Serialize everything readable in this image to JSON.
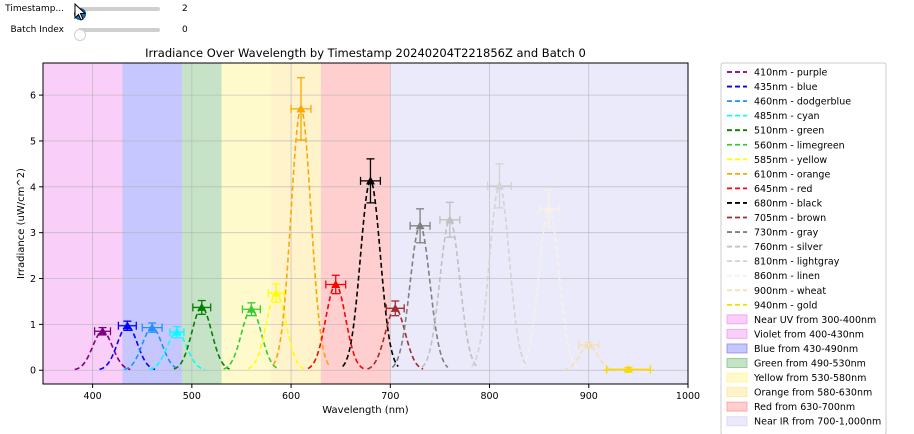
{
  "controls": {
    "timestamp": {
      "label": "Timestamp...",
      "value": "2",
      "fraction": 0.0
    },
    "batch": {
      "label": "Batch Index",
      "value": "0",
      "fraction": 0.0
    }
  },
  "chart_data": {
    "type": "line",
    "title": "Irradiance Over Wavelength by Timestamp  20240204T221856Z and Batch 0",
    "xlabel": "Wavelength (nm)",
    "ylabel": "Irradiance (uW/cm^2)",
    "xlim": [
      350,
      1000
    ],
    "ylim": [
      -0.3,
      6.7
    ],
    "xticks": [
      "400",
      "500",
      "600",
      "700",
      "800",
      "900",
      "1000"
    ],
    "yticks": [
      "0",
      "1",
      "2",
      "3",
      "4",
      "5",
      "6"
    ],
    "grid": true,
    "legend_position": "outside-right",
    "bands": [
      {
        "label": "Near UV from 300-400nm",
        "range": [
          300,
          400
        ],
        "color": "#ee82ee"
      },
      {
        "label": "Violet from 400-430nm",
        "range": [
          400,
          430
        ],
        "color": "#ee82ee"
      },
      {
        "label": "Blue from 430-490nm",
        "range": [
          430,
          490
        ],
        "color": "#6b6bff"
      },
      {
        "label": "Green from 490-530nm",
        "range": [
          490,
          530
        ],
        "color": "#6bb56b"
      },
      {
        "label": "Yellow from 530-580nm",
        "range": [
          530,
          580
        ],
        "color": "#fff27a"
      },
      {
        "label": "Orange from 580-630nm",
        "range": [
          580,
          630
        ],
        "color": "#ffe07a"
      },
      {
        "label": "Red from 630-700nm",
        "range": [
          630,
          700
        ],
        "color": "#ff8080"
      },
      {
        "label": "Near IR from 700-1,000nm",
        "range": [
          700,
          1000
        ],
        "color": "#c9c9f5"
      }
    ],
    "series": [
      {
        "name": "410nm - purple",
        "center": 410,
        "peak": 0.85,
        "color": "#800080",
        "yerr": 0.08,
        "xerr": 8
      },
      {
        "name": "435nm - blue",
        "center": 435,
        "peak": 0.97,
        "color": "#0000ff",
        "yerr": 0.1,
        "xerr": 9
      },
      {
        "name": "460nm - dodgerblue",
        "center": 460,
        "peak": 0.93,
        "color": "#1e90ff",
        "yerr": 0.1,
        "xerr": 10
      },
      {
        "name": "485nm - cyan",
        "center": 485,
        "peak": 0.83,
        "color": "#00ffff",
        "yerr": 0.12,
        "xerr": 7
      },
      {
        "name": "510nm - green",
        "center": 510,
        "peak": 1.37,
        "color": "#008000",
        "yerr": 0.15,
        "xerr": 9
      },
      {
        "name": "560nm - limegreen",
        "center": 560,
        "peak": 1.33,
        "color": "#32cd32",
        "yerr": 0.14,
        "xerr": 9
      },
      {
        "name": "585nm - yellow",
        "center": 585,
        "peak": 1.68,
        "color": "#ffff00",
        "yerr": 0.2,
        "xerr": 8
      },
      {
        "name": "610nm - orange",
        "center": 610,
        "peak": 5.7,
        "color": "#ffa500",
        "yerr": 0.68,
        "xerr": 10
      },
      {
        "name": "645nm - red",
        "center": 645,
        "peak": 1.87,
        "color": "#ff0000",
        "yerr": 0.2,
        "xerr": 10
      },
      {
        "name": "680nm - black",
        "center": 680,
        "peak": 4.13,
        "color": "#000000",
        "yerr": 0.48,
        "xerr": 10
      },
      {
        "name": "705nm - brown",
        "center": 705,
        "peak": 1.35,
        "color": "#a52a2a",
        "yerr": 0.16,
        "xerr": 9
      },
      {
        "name": "730nm - gray",
        "center": 730,
        "peak": 3.15,
        "color": "#808080",
        "yerr": 0.37,
        "xerr": 10
      },
      {
        "name": "760nm - silver",
        "center": 760,
        "peak": 3.28,
        "color": "#c0c0c0",
        "yerr": 0.38,
        "xerr": 10
      },
      {
        "name": "810nm - lightgray",
        "center": 810,
        "peak": 4.02,
        "color": "#d3d3d3",
        "yerr": 0.48,
        "xerr": 12
      },
      {
        "name": "860nm - linen",
        "center": 860,
        "peak": 3.52,
        "color": "#faf0e6",
        "yerr": 0.4,
        "xerr": 10
      },
      {
        "name": "900nm - wheat",
        "center": 900,
        "peak": 0.55,
        "color": "#f5deb3",
        "yerr": 0.06,
        "xerr": 10
      },
      {
        "name": "940nm - gold",
        "center": 940,
        "peak": 0.02,
        "color": "#ffd700",
        "yerr": 0.04,
        "xerr": 22
      }
    ]
  }
}
